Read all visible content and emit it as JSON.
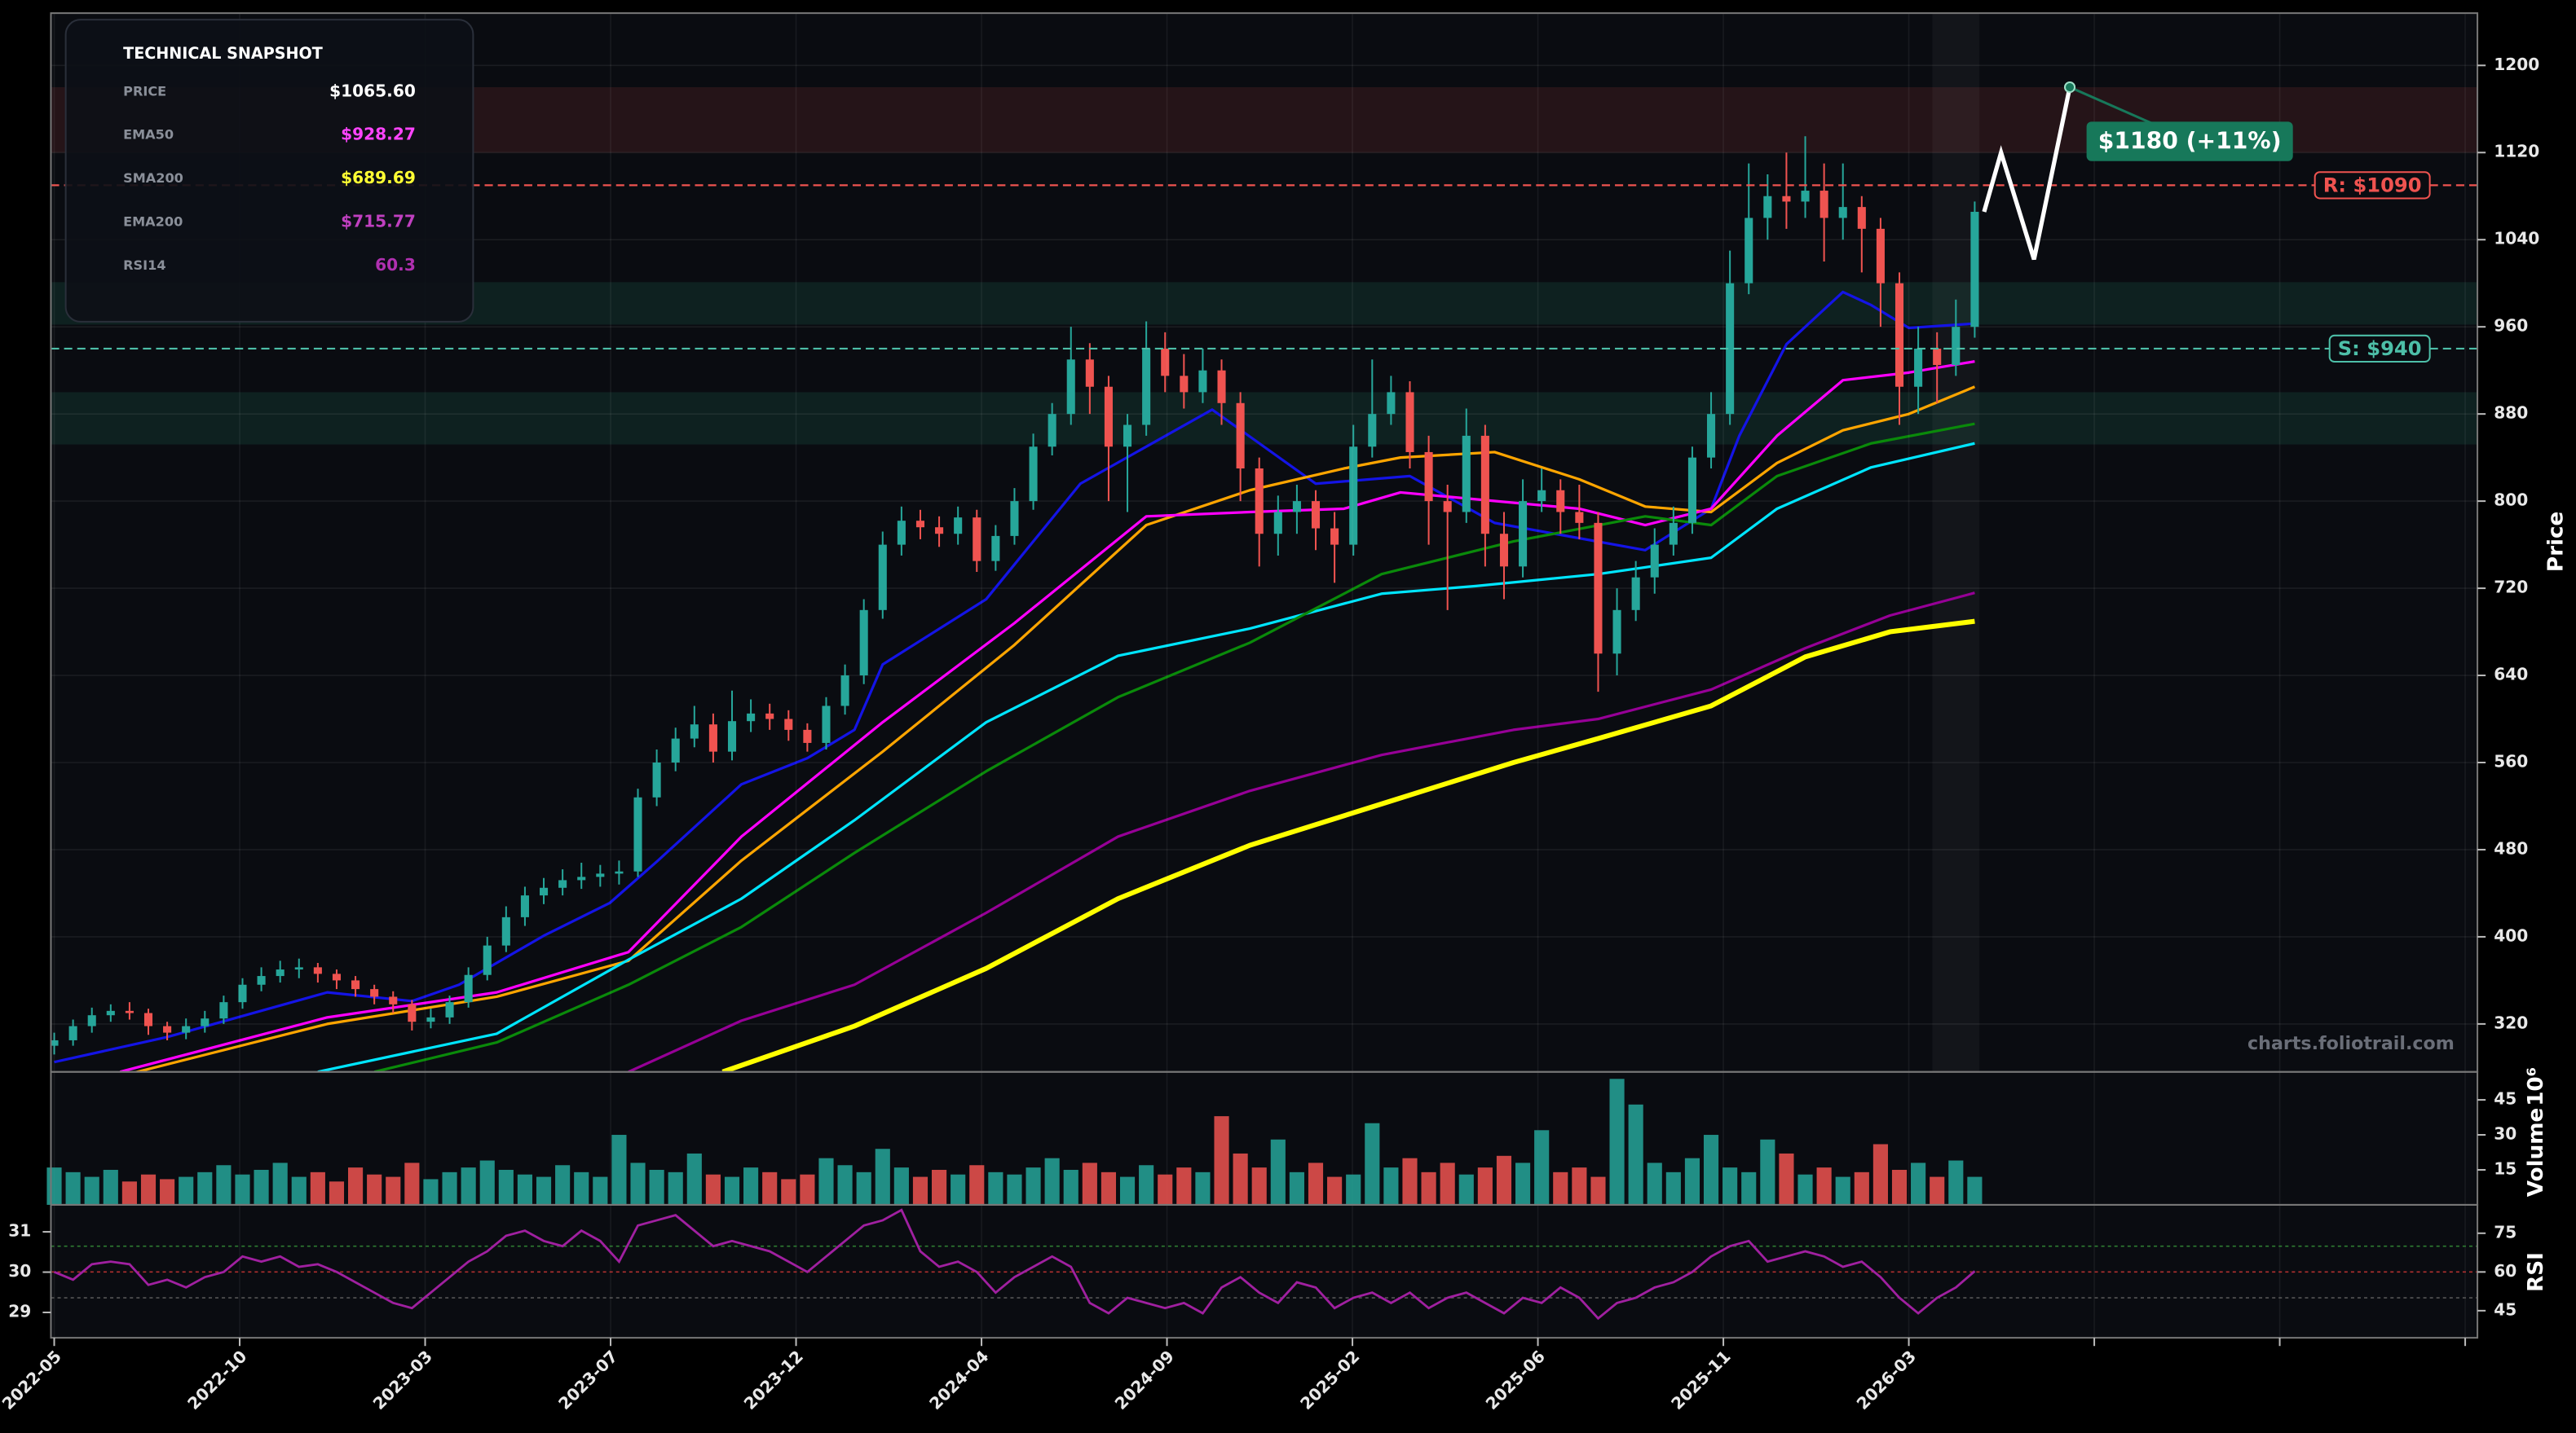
{
  "chart_data": {
    "type": "candlestick",
    "x": [
      0,
      2,
      4,
      6,
      8,
      10,
      12,
      14,
      16,
      18,
      20,
      22,
      24,
      26,
      28,
      30,
      32,
      34,
      36,
      38,
      40,
      42,
      44,
      46,
      48,
      50,
      52,
      54,
      56,
      58,
      60,
      62,
      64,
      66,
      68,
      70,
      72,
      74,
      76,
      78,
      80,
      82,
      84,
      86,
      88,
      90,
      92,
      94,
      96,
      98,
      100,
      102,
      104,
      106,
      108,
      110,
      112,
      114,
      116,
      118,
      120,
      122,
      124,
      126,
      128,
      130,
      132,
      134,
      136,
      138,
      140,
      142,
      144,
      146,
      148,
      150,
      152,
      154,
      156,
      158,
      160,
      162,
      164,
      166,
      168,
      170,
      172,
      174,
      176,
      178,
      180,
      182,
      184,
      186,
      188,
      190,
      192,
      194,
      196,
      198,
      200,
      202,
      204
    ],
    "open": [
      300,
      305,
      318,
      328,
      332,
      330,
      318,
      312,
      318,
      325,
      340,
      356,
      364,
      370,
      372,
      366,
      360,
      352,
      345,
      338,
      322,
      326,
      340,
      365,
      392,
      418,
      438,
      445,
      452,
      455,
      458,
      460,
      528,
      560,
      582,
      595,
      570,
      598,
      605,
      600,
      590,
      578,
      612,
      640,
      700,
      760,
      782,
      776,
      770,
      785,
      745,
      768,
      800,
      850,
      880,
      930,
      905,
      850,
      870,
      940,
      915,
      900,
      920,
      890,
      830,
      770,
      790,
      800,
      775,
      760,
      850,
      880,
      900,
      845,
      800,
      790,
      860,
      770,
      740,
      800,
      810,
      790,
      780,
      660,
      700,
      730,
      760,
      780,
      840,
      880,
      1000,
      1060,
      1080,
      1075,
      1085,
      1060,
      1070,
      1050,
      1000,
      905,
      940,
      925,
      960
    ],
    "high": [
      312,
      324,
      335,
      338,
      340,
      334,
      322,
      325,
      332,
      346,
      362,
      372,
      378,
      380,
      376,
      370,
      364,
      356,
      350,
      342,
      334,
      346,
      372,
      400,
      428,
      446,
      454,
      462,
      468,
      466,
      470,
      536,
      572,
      592,
      612,
      605,
      626,
      618,
      614,
      608,
      596,
      620,
      650,
      710,
      772,
      795,
      792,
      786,
      795,
      792,
      778,
      812,
      862,
      890,
      960,
      945,
      915,
      880,
      965,
      955,
      935,
      940,
      930,
      900,
      840,
      805,
      815,
      810,
      790,
      870,
      930,
      915,
      910,
      860,
      815,
      885,
      870,
      790,
      820,
      830,
      820,
      815,
      790,
      720,
      745,
      775,
      795,
      850,
      900,
      1030,
      1110,
      1100,
      1120,
      1135,
      1110,
      1110,
      1080,
      1060,
      1010,
      960,
      955,
      985,
      1075
    ],
    "low": [
      292,
      300,
      312,
      322,
      324,
      310,
      305,
      306,
      312,
      320,
      334,
      350,
      358,
      362,
      358,
      352,
      345,
      338,
      330,
      314,
      316,
      320,
      335,
      360,
      386,
      410,
      430,
      438,
      444,
      446,
      448,
      455,
      520,
      552,
      574,
      560,
      562,
      588,
      590,
      580,
      570,
      572,
      604,
      632,
      692,
      750,
      765,
      758,
      760,
      735,
      736,
      760,
      792,
      842,
      870,
      880,
      800,
      790,
      860,
      900,
      885,
      890,
      870,
      800,
      740,
      750,
      770,
      755,
      725,
      750,
      840,
      870,
      830,
      760,
      700,
      780,
      740,
      710,
      730,
      790,
      770,
      765,
      625,
      640,
      690,
      715,
      750,
      770,
      830,
      870,
      990,
      1040,
      1050,
      1060,
      1020,
      1040,
      1010,
      960,
      870,
      880,
      890,
      915,
      950
    ],
    "close": [
      305,
      318,
      328,
      332,
      330,
      318,
      312,
      318,
      325,
      340,
      356,
      364,
      370,
      372,
      366,
      360,
      352,
      345,
      338,
      322,
      326,
      340,
      365,
      392,
      418,
      438,
      445,
      452,
      455,
      458,
      460,
      528,
      560,
      582,
      595,
      570,
      598,
      605,
      600,
      590,
      578,
      612,
      640,
      700,
      760,
      782,
      776,
      770,
      785,
      745,
      768,
      800,
      850,
      880,
      930,
      905,
      850,
      870,
      940,
      915,
      900,
      920,
      890,
      830,
      770,
      790,
      800,
      775,
      760,
      850,
      880,
      900,
      845,
      800,
      790,
      860,
      770,
      740,
      800,
      810,
      790,
      780,
      660,
      700,
      730,
      760,
      780,
      840,
      880,
      1000,
      1060,
      1080,
      1075,
      1085,
      1060,
      1070,
      1050,
      1000,
      905,
      940,
      925,
      960,
      1065.6
    ],
    "up_color": "#26a69a",
    "down_color": "#ef5350",
    "xlim": [
      -0.35,
      257.4
    ],
    "xticks": [
      {
        "value": 0,
        "label": "2022-05"
      },
      {
        "value": 19.7,
        "label": "2022-10"
      },
      {
        "value": 39.4,
        "label": "2023-03"
      },
      {
        "value": 59.1,
        "label": "2023-07"
      },
      {
        "value": 78.8,
        "label": "2023-12"
      },
      {
        "value": 98.5,
        "label": "2024-04"
      },
      {
        "value": 118.2,
        "label": "2024-09"
      },
      {
        "value": 137.9,
        "label": "2025-02"
      },
      {
        "value": 157.6,
        "label": "2025-06"
      },
      {
        "value": 177.3,
        "label": "2025-11"
      },
      {
        "value": 197,
        "label": "2026-03"
      }
    ],
    "xticks_minor": [
      216.7,
      236.4,
      256.1
    ],
    "ylim": [
      276,
      1248
    ],
    "yticks": [
      320,
      400,
      480,
      560,
      640,
      720,
      800,
      880,
      960,
      1040,
      1120,
      1200
    ],
    "ylabel": "Price",
    "grid": true,
    "moving_averages": [
      {
        "color": "#1414e6",
        "x": [
          0,
          12,
          29,
          38,
          43,
          52,
          59,
          64,
          73,
          80,
          85,
          88,
          99,
          109,
          123,
          134,
          144,
          153,
          169,
          176,
          179,
          184,
          190,
          193,
          197,
          204
        ],
        "values": [
          285,
          308,
          349,
          341,
          356,
          401,
          431,
          469,
          540,
          564,
          590,
          650,
          710,
          816,
          884,
          816,
          823,
          780,
          755,
          793,
          860,
          944,
          992,
          980,
          959,
          963
        ]
      },
      {
        "color": "#ffa500",
        "x": [
          7,
          29,
          47,
          61,
          73,
          88,
          102,
          116,
          127,
          137,
          143,
          153,
          162,
          169,
          176,
          183,
          190,
          197,
          204
        ],
        "values": [
          272,
          320,
          345,
          378,
          470,
          570,
          668,
          778,
          810,
          830,
          840,
          845,
          820,
          795,
          790,
          835,
          865,
          880,
          905
        ]
      },
      {
        "color": "#ff00ff",
        "x": [
          7,
          29,
          47,
          61,
          73,
          88,
          102,
          116,
          127,
          137,
          143,
          162,
          169,
          176,
          183,
          190,
          197,
          204
        ],
        "values": [
          276,
          326,
          349,
          386,
          492,
          597,
          688,
          786,
          790,
          793,
          808,
          793,
          778,
          793,
          860,
          911,
          918,
          928.27
        ]
      },
      {
        "color": "#00e5ff",
        "x": [
          28,
          47,
          61,
          73,
          85,
          99,
          113,
          127,
          141,
          151,
          164,
          176,
          183,
          193,
          204
        ],
        "values": [
          276,
          311,
          379,
          435,
          507,
          597,
          658,
          683,
          715,
          722,
          733,
          748,
          793,
          831,
          853
        ]
      },
      {
        "color": "#0a8a0a",
        "x": [
          34,
          47,
          61,
          73,
          85,
          99,
          113,
          127,
          141,
          155,
          169,
          176,
          183,
          193,
          204
        ],
        "values": [
          276,
          303,
          356,
          409,
          477,
          552,
          620,
          670,
          733,
          763,
          786,
          778,
          823,
          853,
          871
        ]
      },
      {
        "color": "#960096",
        "x": [
          61,
          73,
          85,
          99,
          113,
          127,
          141,
          155,
          164,
          176,
          186,
          195,
          204
        ],
        "values": [
          276,
          323,
          356,
          422,
          492,
          534,
          567,
          590,
          600,
          627,
          665,
          695,
          715.77
        ]
      },
      {
        "color": "#ffff00",
        "x": [
          71,
          85,
          99,
          113,
          127,
          141,
          155,
          164,
          176,
          186,
          195,
          204
        ],
        "values": [
          276,
          318,
          371,
          435,
          484,
          522,
          560,
          582,
          612,
          657,
          680,
          689.69
        ]
      }
    ],
    "zones": [
      {
        "range": [
          1120,
          1180
        ],
        "color": "#e05050"
      },
      {
        "range": [
          962,
          1001
        ],
        "color": "#2fae8a"
      },
      {
        "range": [
          852,
          900
        ],
        "color": "#2fae8a"
      }
    ],
    "levels": [
      {
        "value": 1090,
        "label": "R: $1090",
        "color": "#ef5350"
      },
      {
        "value": 940,
        "label": "S: $940",
        "color": "#4dbfa8"
      }
    ],
    "highlight": [
      199.5,
      204.5
    ],
    "forecast": {
      "color": "#ffffff",
      "x": [
        205,
        206.8,
        210.3,
        214.1
      ],
      "y": [
        1065.6,
        1120,
        1022,
        1180
      ]
    },
    "annotation": {
      "text": "$1180 (+11%)",
      "x": 214.1,
      "y": 1180,
      "color": "#17785a"
    },
    "watermark": "charts.foliotrail.com",
    "volume": {
      "values": [
        16,
        14,
        12,
        15,
        10,
        13,
        11,
        12,
        14,
        17,
        13,
        15,
        18,
        12,
        14,
        10,
        16,
        13,
        12,
        18,
        11,
        14,
        16,
        19,
        15,
        13,
        12,
        17,
        14,
        12,
        30,
        18,
        15,
        14,
        22,
        13,
        12,
        16,
        14,
        11,
        13,
        20,
        17,
        14,
        24,
        16,
        12,
        15,
        13,
        17,
        14,
        13,
        16,
        20,
        15,
        18,
        14,
        12,
        17,
        13,
        16,
        14,
        38,
        22,
        16,
        28,
        14,
        18,
        12,
        13,
        35,
        16,
        20,
        14,
        18,
        13,
        16,
        21,
        18,
        32,
        14,
        16,
        12,
        54,
        43,
        18,
        14,
        20,
        30,
        16,
        14,
        28,
        22,
        13,
        16,
        12,
        14,
        26,
        15,
        18,
        12,
        19,
        12
      ],
      "ylim": [
        0,
        57
      ],
      "yticks": [
        15,
        30,
        45
      ],
      "ylabel": "Volume",
      "scale_label": "10⁶"
    },
    "rsi": {
      "values": [
        60,
        57,
        63,
        64,
        63,
        55,
        57,
        54,
        58,
        60,
        66,
        64,
        66,
        62,
        63,
        60,
        56,
        52,
        48,
        46,
        52,
        58,
        64,
        68,
        74,
        76,
        72,
        70,
        76,
        72,
        64,
        78,
        80,
        82,
        76,
        70,
        72,
        70,
        68,
        64,
        60,
        66,
        72,
        78,
        80,
        84,
        68,
        62,
        64,
        60,
        52,
        58,
        62,
        66,
        62,
        48,
        44,
        50,
        48,
        46,
        48,
        44,
        54,
        58,
        52,
        48,
        56,
        54,
        46,
        50,
        52,
        48,
        52,
        46,
        50,
        52,
        48,
        44,
        50,
        48,
        54,
        50,
        42,
        48,
        50,
        54,
        56,
        60,
        66,
        70,
        72,
        64,
        66,
        68,
        66,
        62,
        64,
        58,
        50,
        44,
        50,
        54,
        60.3
      ],
      "color": "#a020a0",
      "ylim": [
        34.5,
        86
      ],
      "yticks": [
        45,
        60,
        75
      ],
      "y2lim": [
        28.37,
        31.67
      ],
      "y2ticks": [
        29,
        30,
        31
      ],
      "ylabel": "RSI",
      "reference_lines": [
        {
          "value": 70,
          "color": "#2e7d32"
        },
        {
          "value": 60,
          "color": "#b03030"
        },
        {
          "value": 50,
          "color": "#555555"
        }
      ]
    }
  },
  "snapshot": {
    "title": "TECHNICAL SNAPSHOT",
    "rows": [
      {
        "label": "PRICE",
        "value": "$1065.60",
        "color": "#ffffff"
      },
      {
        "label": "EMA50",
        "value": "$928.27",
        "color": "#ff44ff"
      },
      {
        "label": "SMA200",
        "value": "$689.69",
        "color": "#ffff33"
      },
      {
        "label": "EMA200",
        "value": "$715.77",
        "color": "#c040c0"
      },
      {
        "label": "RSI14",
        "value": "60.3",
        "color": "#b030b0"
      }
    ]
  }
}
